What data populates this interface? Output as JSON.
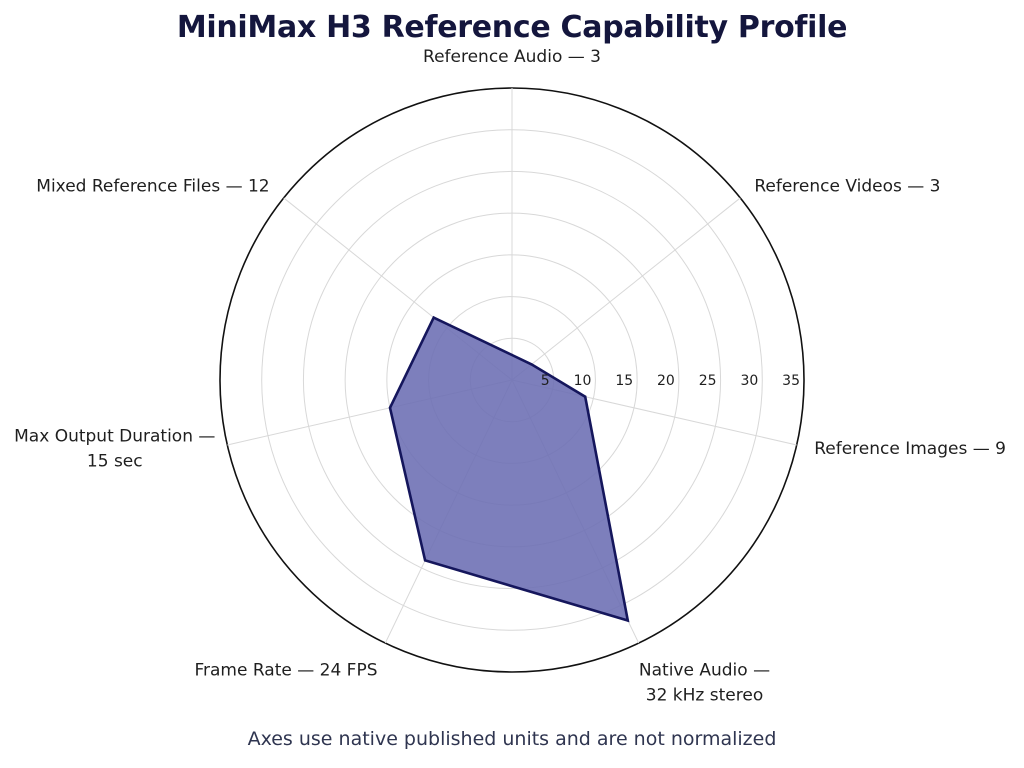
{
  "chart_data": {
    "type": "radar",
    "title": "MiniMax H3 Reference Capability Profile",
    "footnote": "Axes use native published units and are not normalized",
    "radial_range": [
      0,
      35
    ],
    "radial_ticks": [
      5,
      10,
      15,
      20,
      25,
      30,
      35
    ],
    "grid": true,
    "axes": [
      {
        "label": "Reference Audio — 3",
        "lines": [
          "Reference Audio — 3"
        ],
        "value": 3
      },
      {
        "label": "Reference Videos — 3",
        "lines": [
          "Reference Videos — 3"
        ],
        "value": 3
      },
      {
        "label": "Reference Images — 9",
        "lines": [
          "Reference Images — 9"
        ],
        "value": 9
      },
      {
        "label": "Native Audio — 32 kHz stereo",
        "lines": [
          "Native Audio —",
          "32 kHz stereo"
        ],
        "value": 32
      },
      {
        "label": "Frame Rate — 24 FPS",
        "lines": [
          "Frame Rate — 24 FPS"
        ],
        "value": 24
      },
      {
        "label": "Max Output Duration — 15 sec",
        "lines": [
          "Max Output Duration —",
          "15 sec"
        ],
        "value": 15
      },
      {
        "label": "Mixed Reference Files — 12",
        "lines": [
          "Mixed Reference Files — 12"
        ],
        "value": 12
      }
    ],
    "series": [
      {
        "values": [
          3,
          3,
          9,
          32,
          24,
          15,
          12
        ]
      }
    ],
    "colors": {
      "fill": "#6b6db3",
      "stroke": "#15165c",
      "grid": "#d8d8d8",
      "outer_ring": "#111111"
    }
  }
}
